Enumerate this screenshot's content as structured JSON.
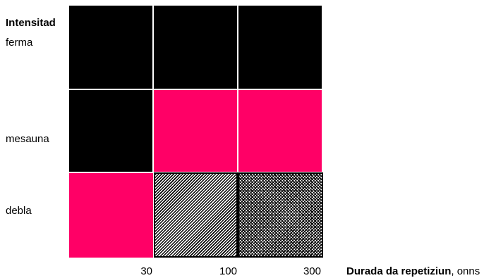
{
  "y_axis": {
    "title": "Intensitad",
    "levels": [
      "ferma",
      "mesauna",
      "debla"
    ]
  },
  "x_axis": {
    "title_bold": "Durada da repetiziun",
    "title_suffix": ", onns",
    "ticks": [
      "30",
      "100",
      "300"
    ]
  },
  "grid": {
    "rows": [
      "ferma",
      "mesauna",
      "debla"
    ],
    "columns": [
      "30",
      "100",
      "300"
    ],
    "cells": [
      [
        "black",
        "black",
        "black"
      ],
      [
        "black",
        "pink",
        "pink"
      ],
      [
        "pink",
        "hatch-dense",
        "hatch-checker"
      ]
    ]
  },
  "colors": {
    "black": "#000000",
    "pink": "#ff0066"
  }
}
